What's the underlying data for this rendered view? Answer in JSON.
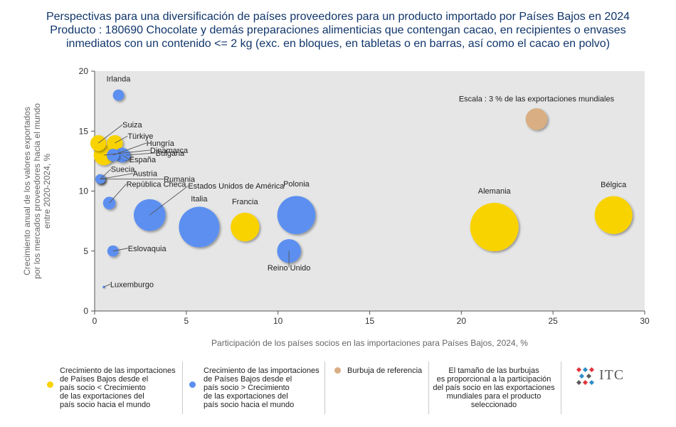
{
  "title": {
    "line1": "Perspectivas para una diversificación de países proveedores para un producto importado por Países Bajos en 2024",
    "line2": "Producto : 180690 Chocolate y demás preparaciones alimenticias que contengan cacao, en recipientes o envases",
    "line3": "inmediatos con un contenido <= 2 kg (exc. en bloques, en tabletas o en barras, así como el cacao en polvo)"
  },
  "chart_data": {
    "type": "scatter",
    "xlabel": "Participación de los países socios en las importaciones para Países Bajos, 2024, %",
    "ylabel_lines": [
      "Crecimiento anual de los valores exportados",
      "por los mercados proveedores hacia el mundo",
      "entre 2020-2024, %"
    ],
    "xlim": [
      0,
      30
    ],
    "ylim": [
      0,
      20
    ],
    "xticks": [
      0,
      5,
      10,
      15,
      20,
      25,
      30
    ],
    "yticks": [
      0,
      5,
      10,
      15,
      20
    ],
    "grid": false,
    "colors": {
      "yellow": "#f9d300",
      "blue": "#5b8ff0",
      "reference": "#d8ae82",
      "plot_bg": "#e6e6e6"
    },
    "points": [
      {
        "name": "Irlanda",
        "x": 1.3,
        "y": 18.0,
        "size": 0.4,
        "group": "blue"
      },
      {
        "name": "Suiza",
        "x": 0.2,
        "y": 14.0,
        "size": 0.8,
        "group": "yellow"
      },
      {
        "name": "Türkiye",
        "x": 1.1,
        "y": 14.0,
        "size": 0.8,
        "group": "yellow"
      },
      {
        "name": "Dinamarca",
        "x": 0.5,
        "y": 13.0,
        "size": 1.3,
        "group": "yellow"
      },
      {
        "name": "Hungría",
        "x": 1.0,
        "y": 13.0,
        "size": 0.5,
        "group": "blue"
      },
      {
        "name": "España",
        "x": 1.5,
        "y": 13.0,
        "size": 0.7,
        "group": "blue"
      },
      {
        "name": "Bulgaria",
        "x": 1.7,
        "y": 13.0,
        "size": 0.3,
        "group": "blue"
      },
      {
        "name": "Suecia",
        "x": 0.3,
        "y": 11.0,
        "size": 0.3,
        "group": "yellow"
      },
      {
        "name": "Austria",
        "x": 0.3,
        "y": 11.0,
        "size": 0.3,
        "group": "blue"
      },
      {
        "name": "Rumania",
        "x": 0.35,
        "y": 11.0,
        "size": 0.25,
        "group": "blue"
      },
      {
        "name": "República Checa",
        "x": 0.8,
        "y": 9.0,
        "size": 0.5,
        "group": "blue"
      },
      {
        "name": "Estados Unidos de América",
        "x": 3.0,
        "y": 8.0,
        "size": 3.2,
        "group": "blue"
      },
      {
        "name": "Italia",
        "x": 5.7,
        "y": 7.0,
        "size": 5.2,
        "group": "blue"
      },
      {
        "name": "Francia",
        "x": 8.2,
        "y": 7.0,
        "size": 2.6,
        "group": "yellow"
      },
      {
        "name": "Polonia",
        "x": 11.0,
        "y": 8.0,
        "size": 4.6,
        "group": "blue"
      },
      {
        "name": "Reino Unido",
        "x": 10.6,
        "y": 5.0,
        "size": 1.8,
        "group": "blue"
      },
      {
        "name": "Eslovaquia",
        "x": 1.0,
        "y": 5.0,
        "size": 0.4,
        "group": "blue"
      },
      {
        "name": "Luxemburgo",
        "x": 0.5,
        "y": 2.0,
        "size": 0.02,
        "group": "blue"
      },
      {
        "name": "Alemania",
        "x": 21.8,
        "y": 7.0,
        "size": 7.4,
        "group": "yellow"
      },
      {
        "name": "Bélgica",
        "x": 28.3,
        "y": 8.0,
        "size": 4.5,
        "group": "yellow"
      },
      {
        "name": "Escala : 3 % de las exportaciones mundiales",
        "x": 24.1,
        "y": 16.0,
        "size": 1.5,
        "group": "reference"
      }
    ]
  },
  "legend": {
    "yellow_text": [
      "Crecimiento de las importaciones",
      "de Países Bajos desde el",
      "país socio < Crecimiento",
      "de las exportaciones del",
      "país socio hacia el mundo"
    ],
    "blue_text": [
      "Crecimiento de las importaciones",
      "de Países Bajos desde el",
      "país socio > Crecimiento",
      "de las exportaciones del",
      "país socio hacia el mundo"
    ],
    "reference_text": "Burbuja de referencia",
    "size_note": [
      "El tamaño de las burbujas",
      "es proporcional a la participación",
      "del país socio en las exportaciones",
      "mundiales para el producto",
      "seleccionado"
    ]
  },
  "logo": {
    "text": "ITC"
  }
}
